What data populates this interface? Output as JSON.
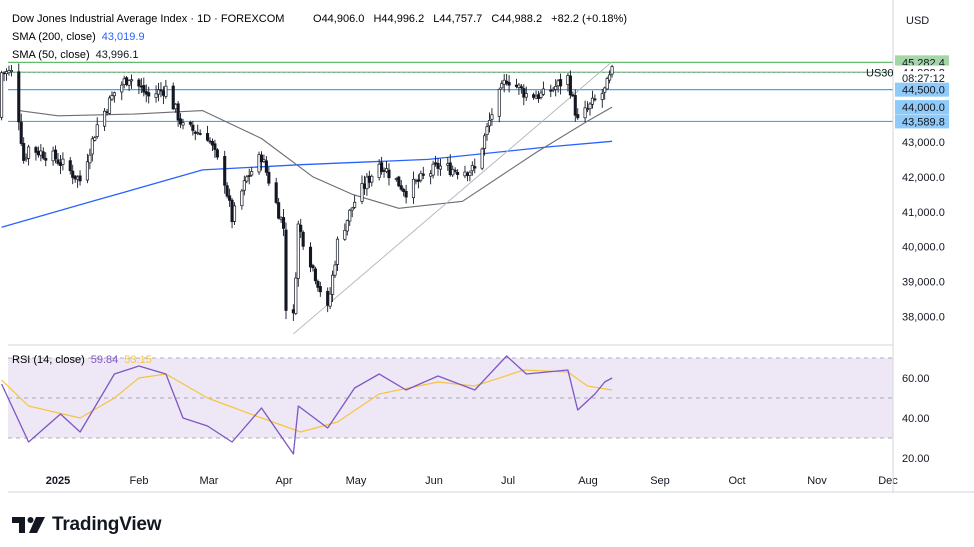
{
  "header": {
    "symbol_title": "Dow Jones Industrial Average Index · 1D · FOREXCOM",
    "ohlc": {
      "o_label": "O",
      "o": "44,906.0",
      "h_label": "H",
      "h": "44,996.2",
      "l_label": "L",
      "l": "44,757.7",
      "c_label": "C",
      "c": "44,988.2",
      "change": "+82.2 (+0.18%)"
    },
    "sma200_label": "SMA (200, close)",
    "sma200_value": "43,019.9",
    "sma50_label": "SMA (50, close)",
    "sma50_value": "43,996.1",
    "rsi_label": "RSI (14, close)",
    "rsi_value": "59.84",
    "rsi_ma_value": "53.15"
  },
  "currency": "USD",
  "logo_text": "TradingView",
  "price_tags": [
    {
      "text": "45,282.4",
      "value": 45282.4,
      "bg": "#a5d6a7",
      "fg": "#131722"
    },
    {
      "text": "45,000.6",
      "value": 45000.6,
      "bg": "#a5d6a7",
      "fg": "#131722"
    },
    {
      "text": "44,988.2",
      "value": 44988.2,
      "bg": "#ffffff",
      "fg": "#131722"
    },
    {
      "text": "08:27:12",
      "value": 44830,
      "bg": "#ffffff",
      "fg": "#131722"
    },
    {
      "text": "44,500.0",
      "value": 44500,
      "bg": "#90caf9",
      "fg": "#131722"
    },
    {
      "text": "44,000.0",
      "value": 44000,
      "bg": "#90caf9",
      "fg": "#131722"
    },
    {
      "text": "43,589.8",
      "value": 43589.8,
      "bg": "#90caf9",
      "fg": "#131722"
    }
  ],
  "us30_label": "US30",
  "colors": {
    "up": "#131722",
    "down": "#131722",
    "sma200": "#2962ff",
    "sma50": "#787b86",
    "green_line": "#66bb6a",
    "blue_line": "#42a5f5",
    "rsi": "#7e57c2",
    "rsi_ma": "#f5c542",
    "rsi_band": "#ede7f6"
  },
  "chart_data": [
    {
      "type": "candlestick",
      "title": "Dow Jones Industrial Average Index · 1D · FOREXCOM",
      "y_ticks": [
        38000,
        39000,
        40000,
        41000,
        42000,
        43000
      ],
      "y_tick_labels": [
        "38,000.0",
        "39,000.0",
        "40,000.0",
        "41,000.0",
        "42,000.0",
        "43,000.0"
      ],
      "ylim": [
        37300,
        45900
      ],
      "x_tick_labels": [
        "2025",
        "Feb",
        "Mar",
        "Apr",
        "May",
        "Jun",
        "Jul",
        "Aug",
        "Sep",
        "Oct",
        "Nov",
        "Dec"
      ],
      "close_anchors": [
        [
          "2024-12-16",
          43700
        ],
        [
          "2024-12-18",
          42500
        ],
        [
          "2024-12-20",
          42840
        ],
        [
          "2024-12-31",
          42540
        ],
        [
          "2025-01-10",
          41900
        ],
        [
          "2025-01-17",
          43480
        ],
        [
          "2025-01-24",
          44420
        ],
        [
          "2025-01-30",
          44880
        ],
        [
          "2025-02-07",
          44300
        ],
        [
          "2025-02-14",
          44540
        ],
        [
          "2025-02-21",
          43430
        ],
        [
          "2025-03-03",
          43190
        ],
        [
          "2025-03-10",
          41900
        ],
        [
          "2025-03-13",
          40800
        ],
        [
          "2025-03-19",
          41960
        ],
        [
          "2025-03-25",
          42600
        ],
        [
          "2025-04-03",
          40550
        ],
        [
          "2025-04-04",
          38300
        ],
        [
          "2025-04-07",
          37970
        ],
        [
          "2025-04-09",
          40600
        ],
        [
          "2025-04-21",
          38170
        ],
        [
          "2025-04-25",
          40110
        ],
        [
          "2025-05-02",
          41300
        ],
        [
          "2025-05-12",
          42410
        ],
        [
          "2025-05-23",
          41600
        ],
        [
          "2025-06-05",
          42300
        ],
        [
          "2025-06-13",
          42200
        ],
        [
          "2025-06-20",
          42200
        ],
        [
          "2025-06-27",
          43820
        ],
        [
          "2025-07-03",
          44830
        ],
        [
          "2025-07-11",
          44370
        ],
        [
          "2025-07-18",
          44340
        ],
        [
          "2025-07-28",
          44840
        ],
        [
          "2025-08-01",
          43590
        ],
        [
          "2025-08-08",
          44180
        ],
        [
          "2025-08-12",
          44460
        ],
        [
          "2025-08-15",
          44988
        ]
      ],
      "sma200": {
        "name": "SMA (200, close)",
        "points": [
          [
            "2024-12-09",
            40560
          ],
          [
            "2025-01-15",
            41300
          ],
          [
            "2025-03-01",
            42200
          ],
          [
            "2025-04-10",
            42350
          ],
          [
            "2025-06-01",
            42500
          ],
          [
            "2025-07-20",
            42860
          ],
          [
            "2025-08-15",
            43020
          ]
        ]
      },
      "sma50": {
        "name": "SMA (50, close)",
        "points": [
          [
            "2024-12-16",
            43900
          ],
          [
            "2025-01-01",
            43750
          ],
          [
            "2025-02-01",
            43800
          ],
          [
            "2025-03-01",
            43900
          ],
          [
            "2025-03-25",
            43100
          ],
          [
            "2025-04-15",
            42000
          ],
          [
            "2025-05-01",
            41500
          ],
          [
            "2025-05-20",
            41100
          ],
          [
            "2025-06-15",
            41300
          ],
          [
            "2025-07-15",
            42700
          ],
          [
            "2025-08-05",
            43600
          ],
          [
            "2025-08-15",
            44000
          ]
        ]
      },
      "horizontal_levels": [
        {
          "value": 45000.6,
          "color": "green"
        },
        {
          "value": 45282.4,
          "color": "green"
        },
        {
          "value": 44500,
          "color": "blue"
        },
        {
          "value": 43589.8,
          "color": "blue"
        }
      ],
      "trendline": {
        "from": [
          "2025-04-07",
          37500
        ],
        "to": [
          "2025-08-15",
          45300
        ]
      }
    },
    {
      "type": "line",
      "title": "RSI (14, close)",
      "y_ticks": [
        20,
        40,
        60
      ],
      "y_tick_labels": [
        "20.00",
        "40.00",
        "60.00"
      ],
      "ylim": [
        18,
        72
      ],
      "band": [
        30,
        70
      ],
      "midline": 50,
      "series": [
        {
          "name": "RSI (14, close)",
          "points": [
            [
              "2024-12-09",
              57
            ],
            [
              "2024-12-20",
              28
            ],
            [
              "2025-01-02",
              42
            ],
            [
              "2025-01-10",
              33
            ],
            [
              "2025-01-24",
              62
            ],
            [
              "2025-02-03",
              66
            ],
            [
              "2025-02-14",
              62
            ],
            [
              "2025-02-21",
              40
            ],
            [
              "2025-03-03",
              36
            ],
            [
              "2025-03-13",
              28
            ],
            [
              "2025-03-25",
              45
            ],
            [
              "2025-04-07",
              22
            ],
            [
              "2025-04-09",
              46
            ],
            [
              "2025-04-21",
              35
            ],
            [
              "2025-05-02",
              55
            ],
            [
              "2025-05-12",
              62
            ],
            [
              "2025-05-23",
              54
            ],
            [
              "2025-06-05",
              61
            ],
            [
              "2025-06-20",
              54
            ],
            [
              "2025-07-03",
              71
            ],
            [
              "2025-07-11",
              62
            ],
            [
              "2025-07-28",
              64
            ],
            [
              "2025-08-01",
              44
            ],
            [
              "2025-08-08",
              52
            ],
            [
              "2025-08-12",
              58
            ],
            [
              "2025-08-15",
              60
            ]
          ]
        },
        {
          "name": "MA",
          "points": [
            [
              "2024-12-09",
              59
            ],
            [
              "2024-12-20",
              46
            ],
            [
              "2025-01-10",
              40
            ],
            [
              "2025-01-24",
              50
            ],
            [
              "2025-02-03",
              60
            ],
            [
              "2025-02-14",
              62
            ],
            [
              "2025-03-03",
              50
            ],
            [
              "2025-03-25",
              40
            ],
            [
              "2025-04-10",
              33
            ],
            [
              "2025-04-25",
              38
            ],
            [
              "2025-05-12",
              52
            ],
            [
              "2025-06-05",
              58
            ],
            [
              "2025-06-20",
              56
            ],
            [
              "2025-07-10",
              64
            ],
            [
              "2025-07-28",
              63
            ],
            [
              "2025-08-05",
              56
            ],
            [
              "2025-08-15",
              54
            ]
          ]
        }
      ]
    }
  ]
}
